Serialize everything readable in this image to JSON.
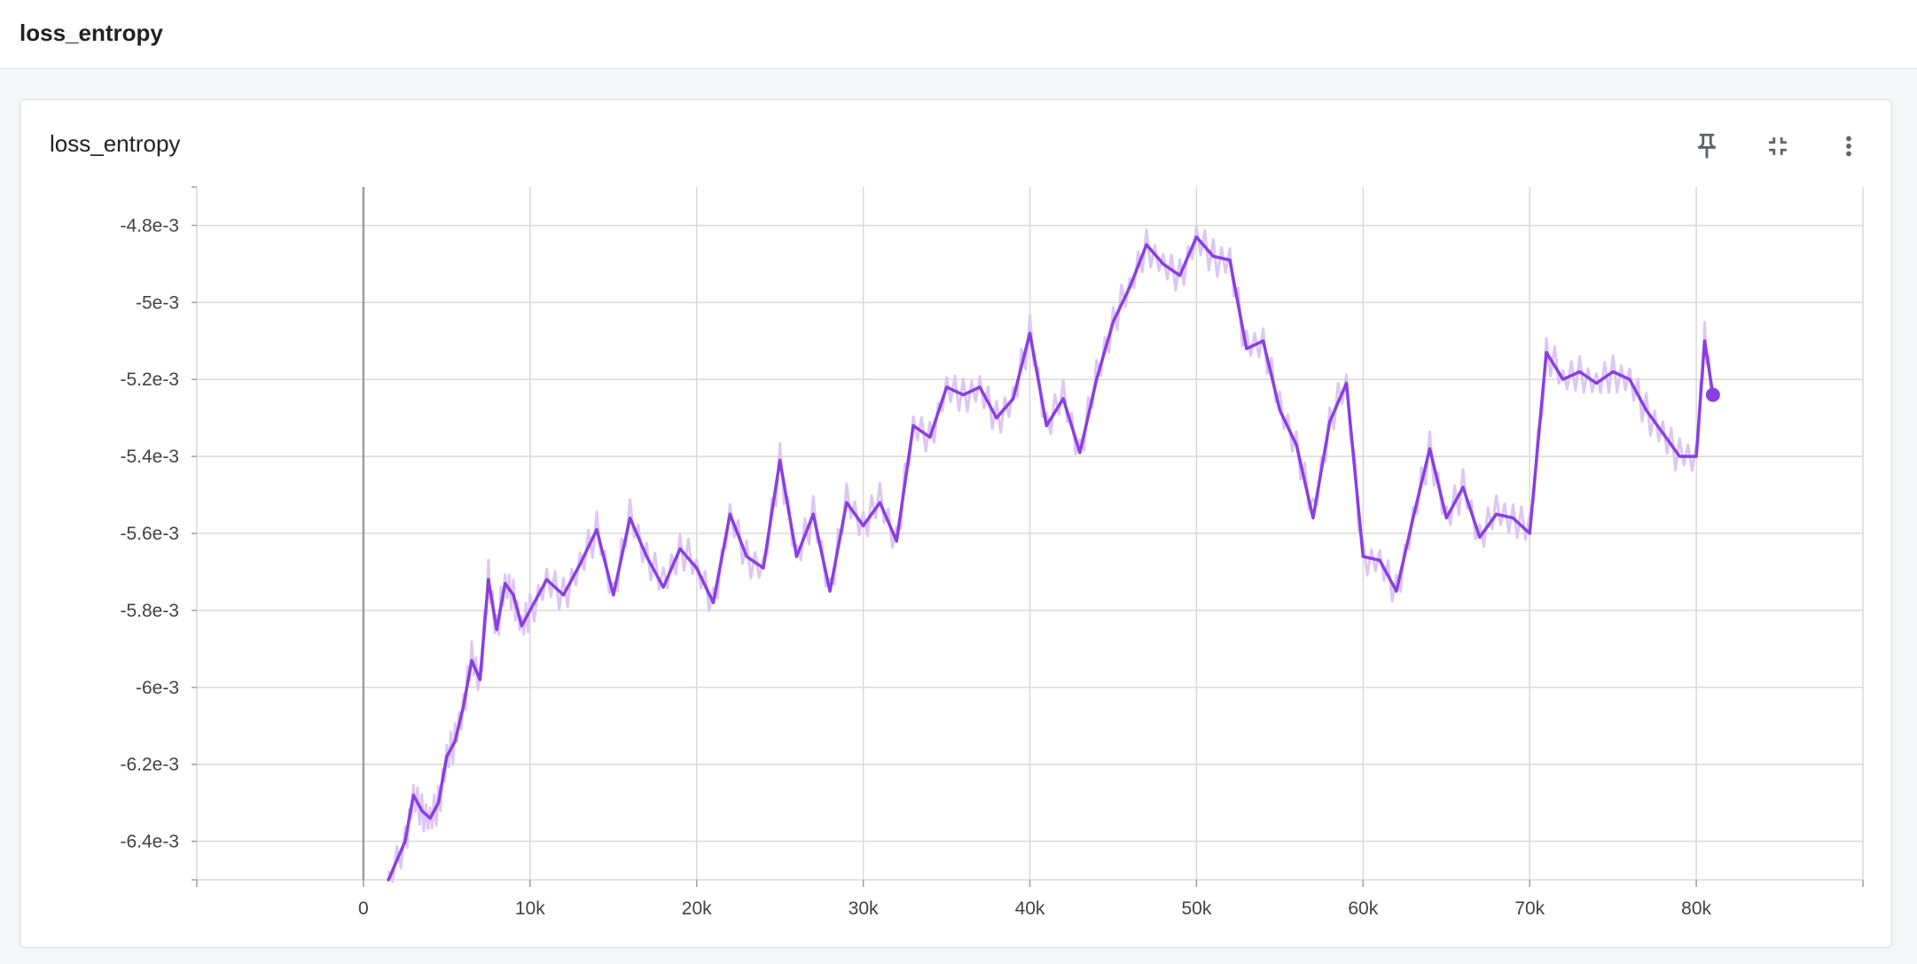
{
  "header": {
    "title": "loss_entropy"
  },
  "card": {
    "title": "loss_entropy",
    "actions": [
      {
        "name": "pin-icon"
      },
      {
        "name": "collapse-icon"
      },
      {
        "name": "more-vert-icon"
      }
    ]
  },
  "colors": {
    "series": "#8a3ee0",
    "raw": "#dcc6f6",
    "grid": "#d9d9d9",
    "zero": "#9e9e9e"
  },
  "chart_data": {
    "type": "line",
    "title": "",
    "xlabel": "",
    "ylabel": "",
    "xlim": [
      -10000,
      90000
    ],
    "ylim": [
      -0.0065,
      -0.0047
    ],
    "x_ticks": [
      0,
      10000,
      20000,
      30000,
      40000,
      50000,
      60000,
      70000,
      80000
    ],
    "x_tick_labels": [
      "0",
      "10k",
      "20k",
      "30k",
      "40k",
      "50k",
      "60k",
      "70k",
      "80k"
    ],
    "y_ticks": [
      -0.0048,
      -0.005,
      -0.0052,
      -0.0054,
      -0.0056,
      -0.0058,
      -0.006,
      -0.0062,
      -0.0064
    ],
    "y_tick_labels": [
      "-4.8e-3",
      "-5e-3",
      "-5.2e-3",
      "-5.4e-3",
      "-5.6e-3",
      "-5.8e-3",
      "-6e-3",
      "-6.2e-3",
      "-6.4e-3"
    ],
    "grid": true,
    "series": [
      {
        "x": [
          1500,
          2500,
          3000,
          3500,
          4000,
          4500,
          5000,
          5500,
          6000,
          6500,
          7000,
          7500,
          8000,
          8500,
          9000,
          9500,
          10000,
          11000,
          12000,
          13000,
          14000,
          15000,
          16000,
          17000,
          18000,
          19000,
          20000,
          21000,
          22000,
          23000,
          24000,
          25000,
          26000,
          27000,
          28000,
          29000,
          30000,
          31000,
          32000,
          33000,
          34000,
          35000,
          36000,
          37000,
          38000,
          39000,
          40000,
          41000,
          42000,
          43000,
          44000,
          45000,
          46000,
          47000,
          48000,
          49000,
          50000,
          51000,
          52000,
          53000,
          54000,
          55000,
          56000,
          57000,
          58000,
          59000,
          60000,
          61000,
          62000,
          63000,
          64000,
          65000,
          66000,
          67000,
          68000,
          69000,
          70000,
          71000,
          72000,
          73000,
          74000,
          75000,
          76000,
          77000,
          78000,
          79000,
          80000,
          80500,
          81000
        ],
        "y": [
          -0.0065,
          -0.0064,
          -0.00628,
          -0.00632,
          -0.00634,
          -0.0063,
          -0.00618,
          -0.00614,
          -0.00605,
          -0.00593,
          -0.00598,
          -0.00572,
          -0.00585,
          -0.00573,
          -0.00576,
          -0.00584,
          -0.0058,
          -0.00572,
          -0.00576,
          -0.00568,
          -0.00559,
          -0.00576,
          -0.00556,
          -0.00566,
          -0.00574,
          -0.00564,
          -0.00569,
          -0.00578,
          -0.00555,
          -0.00566,
          -0.00569,
          -0.00541,
          -0.00566,
          -0.00555,
          -0.00575,
          -0.00552,
          -0.00558,
          -0.00552,
          -0.00562,
          -0.00532,
          -0.00535,
          -0.00522,
          -0.00524,
          -0.00522,
          -0.0053,
          -0.00525,
          -0.00508,
          -0.00532,
          -0.00525,
          -0.00539,
          -0.0052,
          -0.00505,
          -0.00496,
          -0.00485,
          -0.0049,
          -0.00493,
          -0.00483,
          -0.00488,
          -0.00489,
          -0.00512,
          -0.0051,
          -0.00528,
          -0.00537,
          -0.00556,
          -0.00531,
          -0.00521,
          -0.00566,
          -0.00567,
          -0.00575,
          -0.00556,
          -0.00538,
          -0.00556,
          -0.00548,
          -0.00561,
          -0.00555,
          -0.00556,
          -0.0056,
          -0.00513,
          -0.0052,
          -0.00518,
          -0.00521,
          -0.00518,
          -0.0052,
          -0.00528,
          -0.00534,
          -0.0054,
          -0.0054,
          -0.0051,
          -0.00524
        ]
      }
    ],
    "last_point": {
      "x": 81000,
      "y": -0.00524
    }
  }
}
